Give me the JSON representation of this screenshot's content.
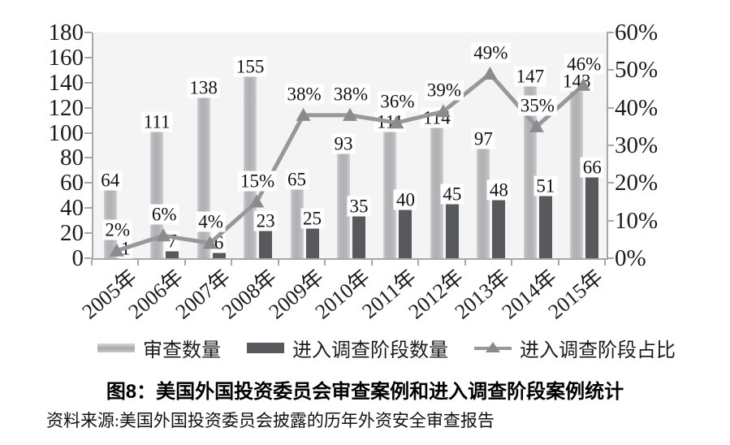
{
  "figure": {
    "title": "图8：美国外国投资委员会审查案例和进入调查阶段案例统计",
    "source_note": "资料来源:美国外国投资委员会披露的历年外资安全审查报告"
  },
  "colors": {
    "bar_review": "#b6b6ba",
    "bar_investigation": "#58595c",
    "trend_line": "#98989c",
    "marker": "#8b8b8f",
    "plot_background": "#f4f4f5",
    "axis": "#a7a7a7",
    "label_background": "#ffffff"
  },
  "chart_data": {
    "type": "combo",
    "title": "图8：美国外国投资委员会审查案例和进入调查阶段案例统计",
    "source": "资料来源:美国外国投资委员会披露的历年外资安全审查报告",
    "categories": [
      "2005年",
      "2006年",
      "2007年",
      "2008年",
      "2009年",
      "2010年",
      "2011年",
      "2012年",
      "2013年",
      "2014年",
      "2015年"
    ],
    "series": [
      {
        "name": "审查数量",
        "type": "bar",
        "axis": "left",
        "values": [
          64,
          111,
          138,
          155,
          65,
          93,
          111,
          114,
          97,
          147,
          143
        ]
      },
      {
        "name": "进入调查阶段数量",
        "type": "bar",
        "axis": "left",
        "values": [
          1,
          7,
          6,
          23,
          25,
          35,
          40,
          45,
          48,
          51,
          66
        ]
      },
      {
        "name": "进入调查阶段占比",
        "type": "line",
        "axis": "right",
        "values": [
          2,
          6,
          4,
          15,
          38,
          38,
          36,
          39,
          49,
          35,
          46
        ],
        "labels": [
          "2%",
          "6%",
          "4%",
          "15%",
          "38%",
          "38%",
          "36%",
          "39%",
          "49%",
          "35%",
          "46%"
        ]
      }
    ],
    "left_axis": {
      "min": 0,
      "max": 180,
      "step": 20,
      "ticks": [
        "0",
        "20",
        "40",
        "60",
        "80",
        "100",
        "120",
        "140",
        "160",
        "180"
      ]
    },
    "right_axis": {
      "min": 0,
      "max": 60,
      "step": 10,
      "ticks": [
        "0%",
        "10%",
        "20%",
        "30%",
        "40%",
        "50%",
        "60%"
      ]
    },
    "grid": false,
    "legend_position": "bottom"
  }
}
